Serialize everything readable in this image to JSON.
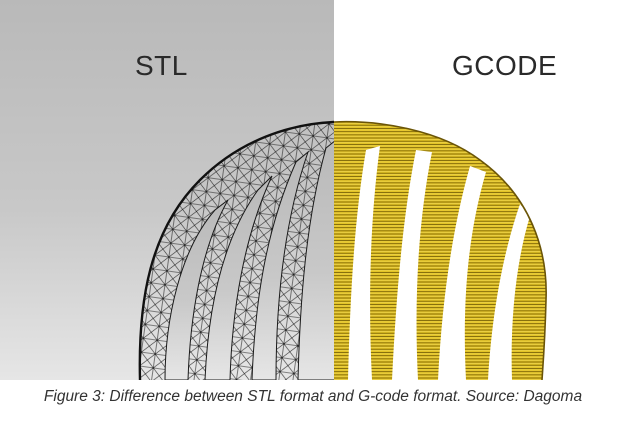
{
  "figure": {
    "left_label": "STL",
    "right_label": "GCODE",
    "colors": {
      "stl_background": "#c4c4c4",
      "stl_mesh": "#1a1a1a",
      "gcode_background": "#ffffff",
      "gcode_fill": "#e2c224",
      "gcode_lines": "#7a6308"
    }
  },
  "caption": "Figure 3: Difference between STL format and G-code format. Source: Dagoma"
}
